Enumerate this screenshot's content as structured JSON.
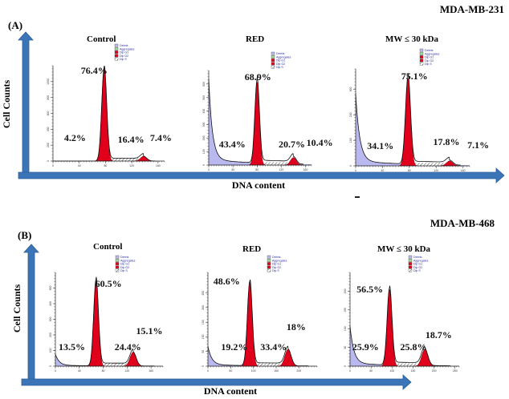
{
  "chart_data": [
    {
      "type": "area",
      "panel_label": "(A)",
      "cell_line": "MDA-MB-231",
      "xlabel": "DNA content",
      "ylabel": "Cell Counts",
      "legend": [
        "Debris",
        "Aggregates",
        "Dip G1",
        "Dip G2",
        "Dip S"
      ],
      "legend_colors": {
        "Debris": "#b9b9f0",
        "Aggregates": "#9fdc9f",
        "Dip G1": "#e0001b",
        "Dip G2": "#e0001b",
        "Dip S": "#ffffff"
      },
      "panels": [
        {
          "title": "Control",
          "x_ticks": [
            "0",
            "40",
            "80",
            "120",
            "160"
          ],
          "x_range": [
            0,
            170
          ],
          "y_ticks": [
            "0",
            "200",
            "400",
            "600",
            "800",
            "1000"
          ],
          "y_range": [
            0,
            1200
          ],
          "g1_peak_x": 78,
          "g2_peak_x": 138,
          "debris_level": 0.0,
          "g1_height": 0.98,
          "g2_height": 0.05,
          "labels": {
            "g1": "76.4%",
            "debris": "4.2%",
            "s": "16.4%",
            "g2": "7.4%"
          }
        },
        {
          "title": "RED",
          "x_ticks": [
            "0",
            "40",
            "80",
            "120",
            "160"
          ],
          "x_range": [
            0,
            170
          ],
          "y_ticks": [
            "0",
            "100",
            "200",
            "300",
            "400",
            "500",
            "600"
          ],
          "y_range": [
            0,
            700
          ],
          "g1_peak_x": 80,
          "g2_peak_x": 140,
          "debris_level": 0.85,
          "g1_height": 0.88,
          "g2_height": 0.08,
          "labels": {
            "g1": "68.9%",
            "debris": "43.4%",
            "s": "20.7%",
            "g2": "10.4%"
          }
        },
        {
          "title": "MW ≤ 30 kDa",
          "x_ticks": [
            "0",
            "40",
            "80",
            "120",
            "160"
          ],
          "x_range": [
            0,
            170
          ],
          "y_ticks": [
            "0",
            "100",
            "200",
            "300"
          ],
          "y_range": [
            0,
            380
          ],
          "g1_peak_x": 78,
          "g2_peak_x": 140,
          "debris_level": 0.7,
          "g1_height": 0.9,
          "g2_height": 0.05,
          "labels": {
            "g1": "75.1%",
            "debris": "34.1%",
            "s": "17.8%",
            "g2": "7.1%"
          }
        }
      ]
    },
    {
      "type": "area",
      "panel_label": "(B)",
      "cell_line": "MDA-MB-468",
      "xlabel": "DNA content",
      "ylabel": "Cell Counts",
      "legend": [
        "Debris",
        "Aggregates",
        "Dip G1",
        "Dip G2",
        "Dip S"
      ],
      "legend_colors": {
        "Debris": "#b9b9f0",
        "Aggregates": "#9fdc9f",
        "Dip G1": "#e0001b",
        "Dip G2": "#e0001b",
        "Dip S": "#ffffff"
      },
      "panels": [
        {
          "title": "Control",
          "x_ticks": [
            "0",
            "40",
            "80",
            "120",
            "160"
          ],
          "x_range": [
            0,
            180
          ],
          "y_ticks": [
            "0",
            "100",
            "200",
            "300",
            "400",
            "500"
          ],
          "y_range": [
            0,
            600
          ],
          "g1_peak_x": 68,
          "g2_peak_x": 130,
          "debris_level": 0.12,
          "g1_height": 0.92,
          "g2_height": 0.15,
          "labels": {
            "g1": "60.5%",
            "debris": "13.5%",
            "s": "24.4%",
            "g2": "15.1%"
          }
        },
        {
          "title": "RED",
          "x_ticks": [
            "0",
            "50",
            "100",
            "150",
            "200"
          ],
          "x_range": [
            0,
            240
          ],
          "y_ticks": [
            "0",
            "50",
            "100",
            "150",
            "200",
            "250"
          ],
          "y_range": [
            0,
            320
          ],
          "g1_peak_x": 92,
          "g2_peak_x": 176,
          "debris_level": 0.2,
          "g1_height": 0.9,
          "g2_height": 0.18,
          "labels": {
            "g1": "48.6%",
            "debris": "19.2%",
            "s": "33.4%",
            "g2": "18%"
          }
        },
        {
          "title": "MW ≤ 30 kDa",
          "x_ticks": [
            "0",
            "50",
            "100",
            "150",
            "200",
            "250"
          ],
          "x_range": [
            0,
            260
          ],
          "y_ticks": [
            "0",
            "50",
            "100",
            "150",
            "200"
          ],
          "y_range": [
            0,
            250
          ],
          "g1_peak_x": 94,
          "g2_peak_x": 178,
          "debris_level": 0.4,
          "g1_height": 0.82,
          "g2_height": 0.18,
          "labels": {
            "g1": "56.5%",
            "debris": "25.9%",
            "s": "25.8%",
            "g2": "18.7%"
          }
        }
      ]
    }
  ]
}
